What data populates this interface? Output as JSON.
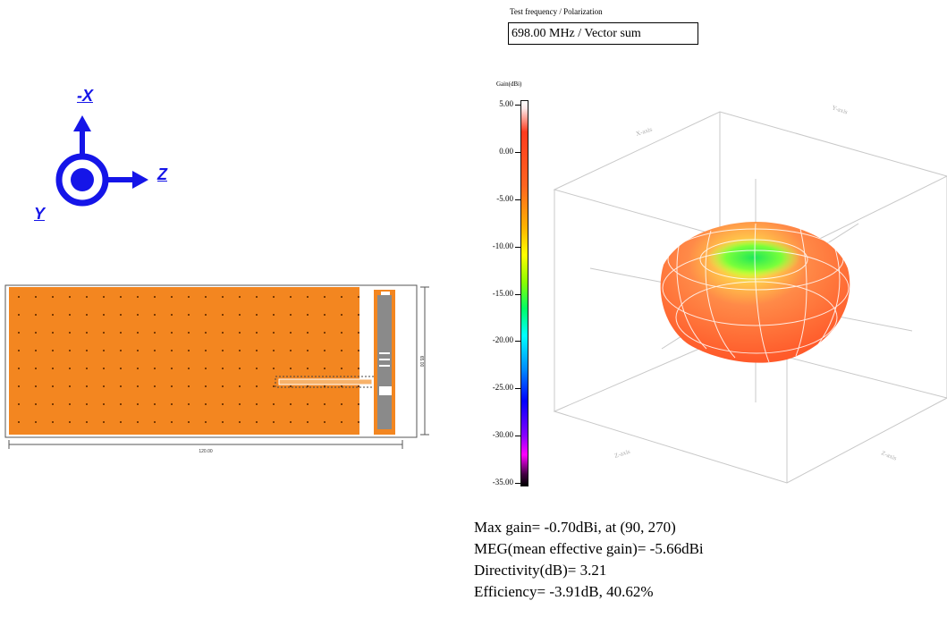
{
  "header": {
    "caption": "Test frequency / Polarization",
    "value": "698.00 MHz / Vector sum"
  },
  "axes_indicator": {
    "x_label": "-X",
    "z_label": "Z",
    "y_label": "Y",
    "color": "#1515e8"
  },
  "antenna_layout": {
    "ground_plane_color": "#f38620",
    "element_color": "#8a8a8a",
    "dimension_width": "120.00",
    "dimension_height": "65.00"
  },
  "color_scale": {
    "title": "Gain(dBi)",
    "ticks": [
      "5.00",
      "0.00",
      "-5.00",
      "-10.00",
      "-15.00",
      "-20.00",
      "-25.00",
      "-30.00",
      "-35.00"
    ]
  },
  "pattern_3d": {
    "axis_labels": [
      "X-axis",
      "Y-axis",
      "Z-axis",
      "Z-axis"
    ]
  },
  "results": {
    "max_gain": "Max gain= -0.70dBi, at (90, 270)",
    "meg": "MEG(mean effective gain)= -5.66dBi",
    "directivity": "Directivity(dB)= 3.21",
    "efficiency": "Efficiency= -3.91dB, 40.62%"
  }
}
